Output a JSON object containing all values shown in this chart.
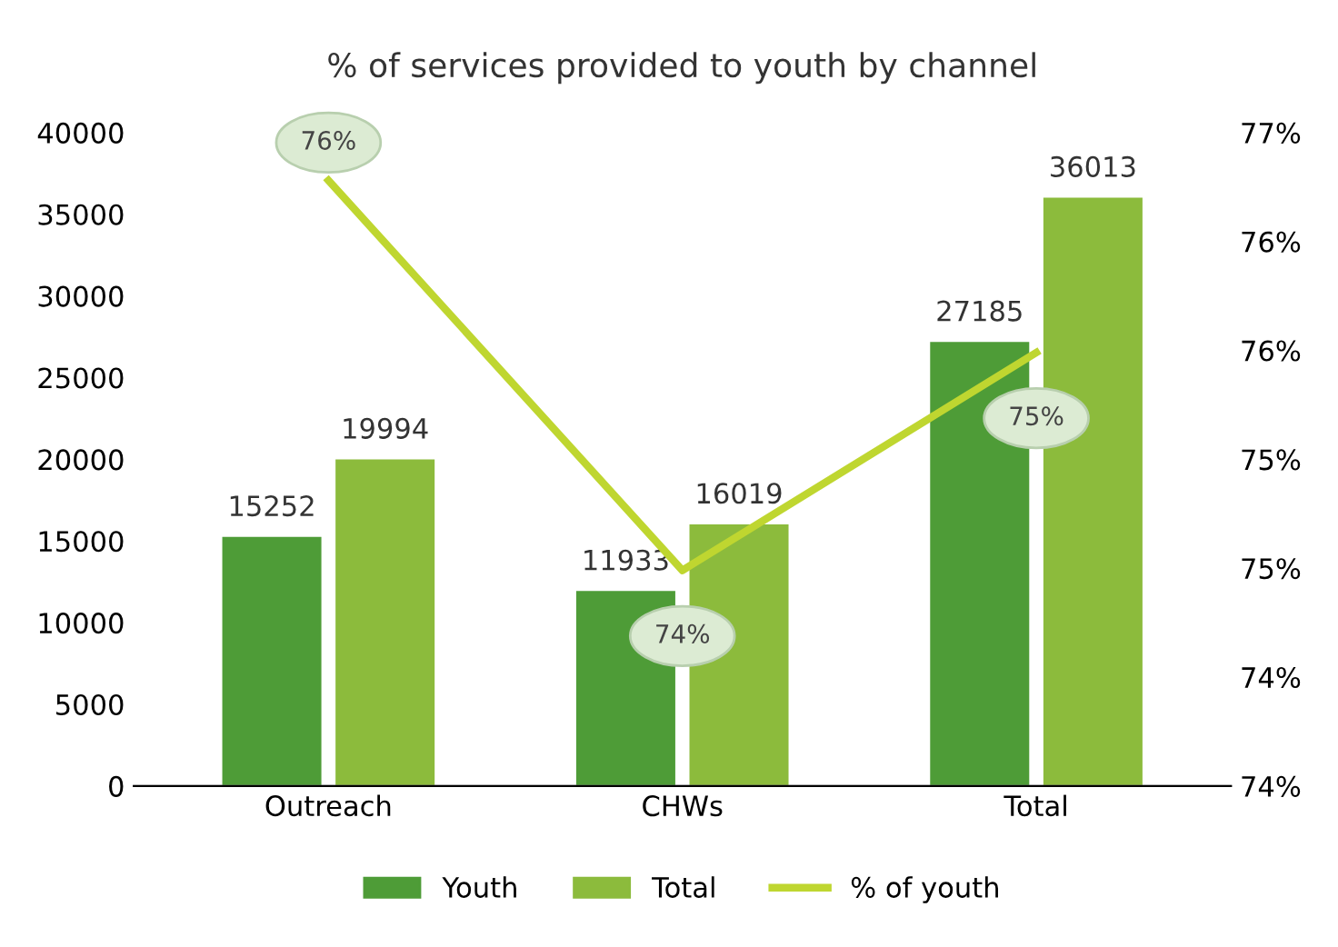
{
  "chart_data": {
    "type": "bar",
    "title": "% of services provided to youth by channel",
    "categories": [
      "Outreach",
      "CHWs",
      "Total"
    ],
    "series": [
      {
        "name": "Youth",
        "color": "#4e9c37",
        "values": [
          15252,
          11933,
          27185
        ],
        "value_labels": [
          "15252",
          "11933",
          "27185"
        ]
      },
      {
        "name": "Total",
        "color": "#8cbb3c",
        "values": [
          19994,
          16019,
          36013
        ],
        "value_labels": [
          "19994",
          "16019",
          "36013"
        ]
      },
      {
        "name": "% of youth",
        "type": "line",
        "axis": "y2",
        "color": "#bfd630",
        "values": [
          76.28,
          74.49,
          75.49
        ],
        "value_labels": [
          "76%",
          "74%",
          "75%"
        ]
      }
    ],
    "ylim": [
      0,
      40000
    ],
    "yticks": [
      0,
      5000,
      10000,
      15000,
      20000,
      25000,
      30000,
      35000,
      40000
    ],
    "y2lim": [
      73.5,
      76.5
    ],
    "y2ticks": [
      {
        "value": 73.5,
        "label": "74%"
      },
      {
        "value": 74.0,
        "label": "74%"
      },
      {
        "value": 74.5,
        "label": "75%"
      },
      {
        "value": 75.0,
        "label": "75%"
      },
      {
        "value": 75.5,
        "label": "76%"
      },
      {
        "value": 76.0,
        "label": "76%"
      },
      {
        "value": 76.5,
        "label": "77%"
      }
    ],
    "grid": false,
    "legend": "bottom",
    "marker": "none",
    "line_style": "solid"
  }
}
